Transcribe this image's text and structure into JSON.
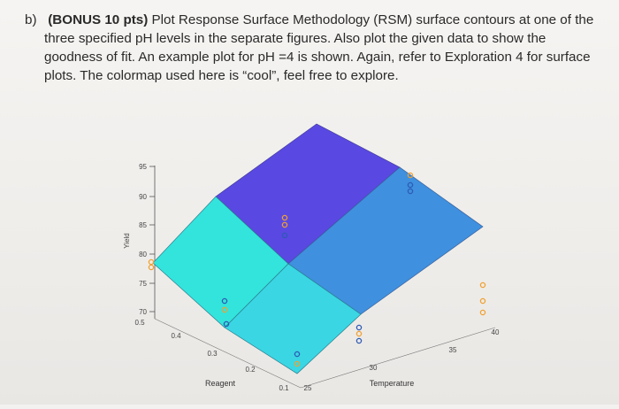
{
  "question": {
    "label": "b)",
    "bonus": "(BONUS 10 pts)",
    "text": "Plot Response Surface Methodology (RSM) surface contours at one of the three specified pH levels in the separate figures. Also plot the given data to show the goodness of fit. An example plot for pH =4 is shown. Again, refer to Exploration 4 for surface plots. The colormap used here is “cool”, feel free to explore."
  },
  "chart_data": {
    "type": "surface",
    "colormap": "cool",
    "zlabel": "Yield",
    "xlabel": "Temperature",
    "ylabel": "Reagent",
    "z_ticks": [
      "95",
      "90",
      "85",
      "80",
      "75",
      "70"
    ],
    "temperature_ticks": [
      "25",
      "30",
      "35",
      "40"
    ],
    "reagent_ticks": [
      "0.5",
      "0.4",
      "0.3",
      "0.2",
      "0.1"
    ],
    "zlim": [
      70,
      95
    ],
    "temperature_range": [
      25,
      40
    ],
    "reagent_range": [
      0.1,
      0.5
    ],
    "surface_colors": {
      "low_near": "#33e6df",
      "low_mid": "#38d9e3",
      "mid": "#3f8cdf",
      "high": "#5546e0"
    },
    "data_marker_color": "#f0a030",
    "data_marker_edge": "#2c5ab5"
  }
}
